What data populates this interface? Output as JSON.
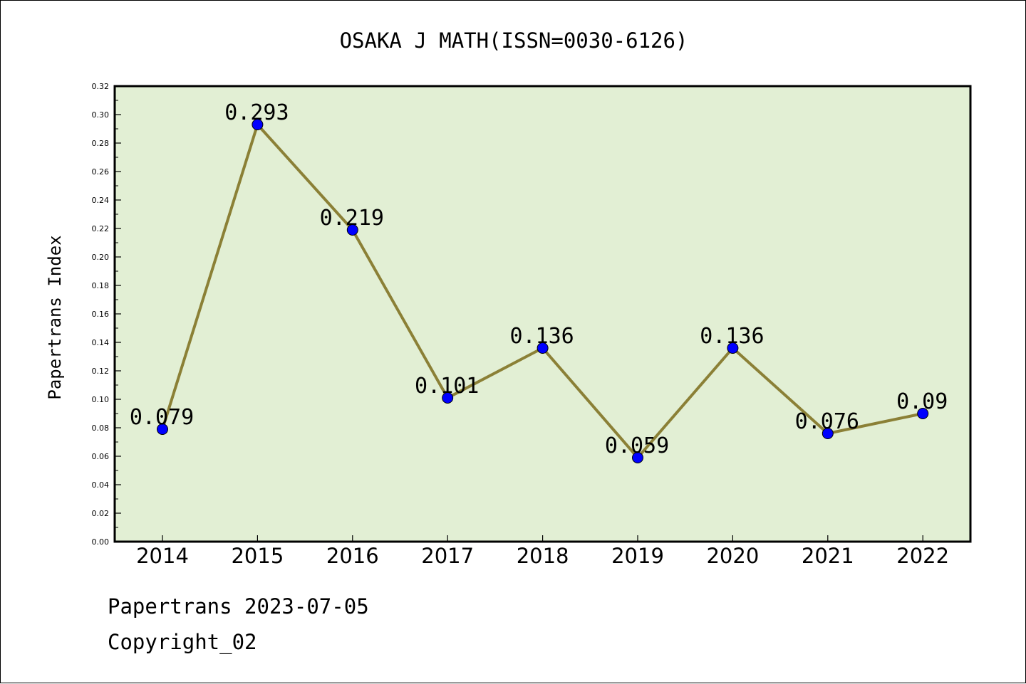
{
  "chart_data": {
    "type": "line",
    "title": "OSAKA J MATH(ISSN=0030-6126)",
    "xlabel": "",
    "ylabel": "Papertrans Index",
    "categories": [
      "2014",
      "2015",
      "2016",
      "2017",
      "2018",
      "2019",
      "2020",
      "2021",
      "2022"
    ],
    "series": [
      {
        "values": [
          0.079,
          0.293,
          0.219,
          0.101,
          0.136,
          0.059,
          0.136,
          0.076,
          0.09
        ],
        "labels": [
          "0.079",
          "0.293",
          "0.219",
          "0.101",
          "0.136",
          "0.059",
          "0.136",
          "0.076",
          "0.09"
        ],
        "line_color": "#8b8036",
        "marker_color": "#0000ff"
      }
    ],
    "ylim": [
      0,
      0.32
    ],
    "yticks": [
      "0.00",
      "0.02",
      "0.04",
      "0.06",
      "0.08",
      "0.10",
      "0.12",
      "0.14",
      "0.16",
      "0.18",
      "0.20",
      "0.22",
      "0.24",
      "0.26",
      "0.28",
      "0.30",
      "0.32"
    ],
    "plot_background": "#e2efd4",
    "grid": false,
    "legend": "none"
  },
  "footer": {
    "date_line": "Papertrans 2023-07-05",
    "copyright": "Copyright_02"
  }
}
